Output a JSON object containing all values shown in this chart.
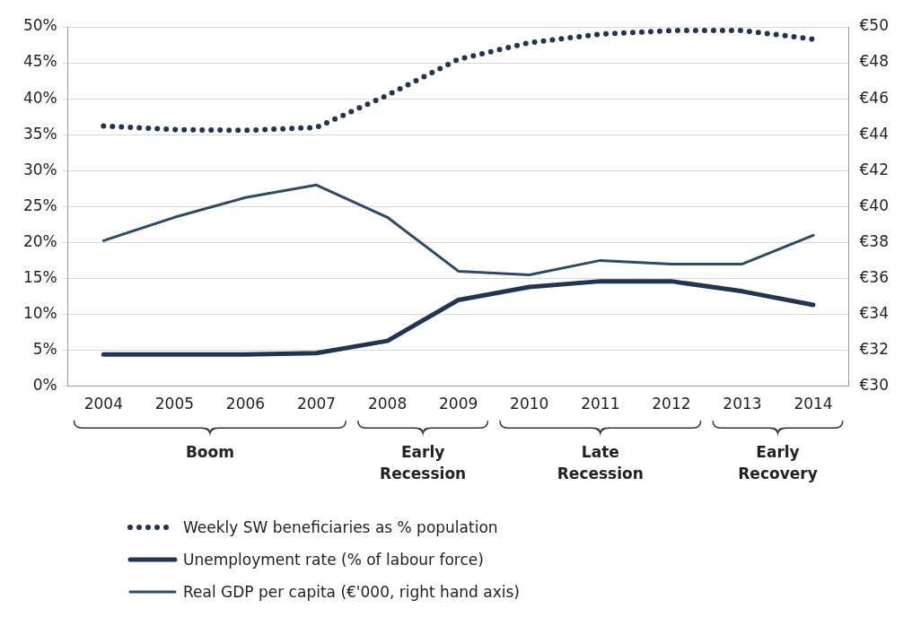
{
  "chart_data": {
    "type": "line",
    "categories": [
      "2004",
      "2005",
      "2006",
      "2007",
      "2008",
      "2009",
      "2010",
      "2011",
      "2012",
      "2013",
      "2014"
    ],
    "series": [
      {
        "name": "Weekly SW beneficiaries as % population",
        "color": "#1f3553",
        "line_style": "dotted",
        "values": [
          36.2,
          35.7,
          35.6,
          36.0,
          40.5,
          45.5,
          47.8,
          49.0,
          49.5,
          49.5,
          48.3
        ]
      },
      {
        "name": "Unemployment rate (% of labour force)",
        "color": "#1f3553",
        "line_style": "solid",
        "values": [
          4.4,
          4.4,
          4.4,
          4.6,
          6.3,
          12.0,
          13.8,
          14.6,
          14.6,
          13.2,
          11.3
        ]
      },
      {
        "name": "Real GDP per capita (€'000, right hand axis)",
        "color": "#2e4a6b",
        "line_style": "solid",
        "axis": "y2",
        "values": [
          38.1,
          39.4,
          40.5,
          41.2,
          39.4,
          36.4,
          36.2,
          37.0,
          36.8,
          36.8,
          38.4
        ]
      }
    ],
    "ylim": [
      0,
      50
    ],
    "yticks": [
      {
        "value": 0,
        "label": "0%"
      },
      {
        "value": 5,
        "label": "5%"
      },
      {
        "value": 10,
        "label": "10%"
      },
      {
        "value": 15,
        "label": "15%"
      },
      {
        "value": 20,
        "label": "20%"
      },
      {
        "value": 25,
        "label": "25%"
      },
      {
        "value": 30,
        "label": "30%"
      },
      {
        "value": 35,
        "label": "35%"
      },
      {
        "value": 40,
        "label": "40%"
      },
      {
        "value": 45,
        "label": "45%"
      },
      {
        "value": 50,
        "label": "50%"
      }
    ],
    "y2lim": [
      30,
      50
    ],
    "y2ticks": [
      {
        "value": 30,
        "label": "€30"
      },
      {
        "value": 32,
        "label": "€32"
      },
      {
        "value": 34,
        "label": "€34"
      },
      {
        "value": 36,
        "label": "€36"
      },
      {
        "value": 38,
        "label": "€38"
      },
      {
        "value": 40,
        "label": "€40"
      },
      {
        "value": 42,
        "label": "€42"
      },
      {
        "value": 44,
        "label": "€44"
      },
      {
        "value": 46,
        "label": "€46"
      },
      {
        "value": 48,
        "label": "€48"
      },
      {
        "value": 50,
        "label": "€50"
      }
    ],
    "annotations": [
      "Boom",
      "Early Recession",
      "Late Recession",
      "Early Recovery"
    ],
    "grid": "y",
    "legend": "bottom",
    "marker": "none"
  }
}
